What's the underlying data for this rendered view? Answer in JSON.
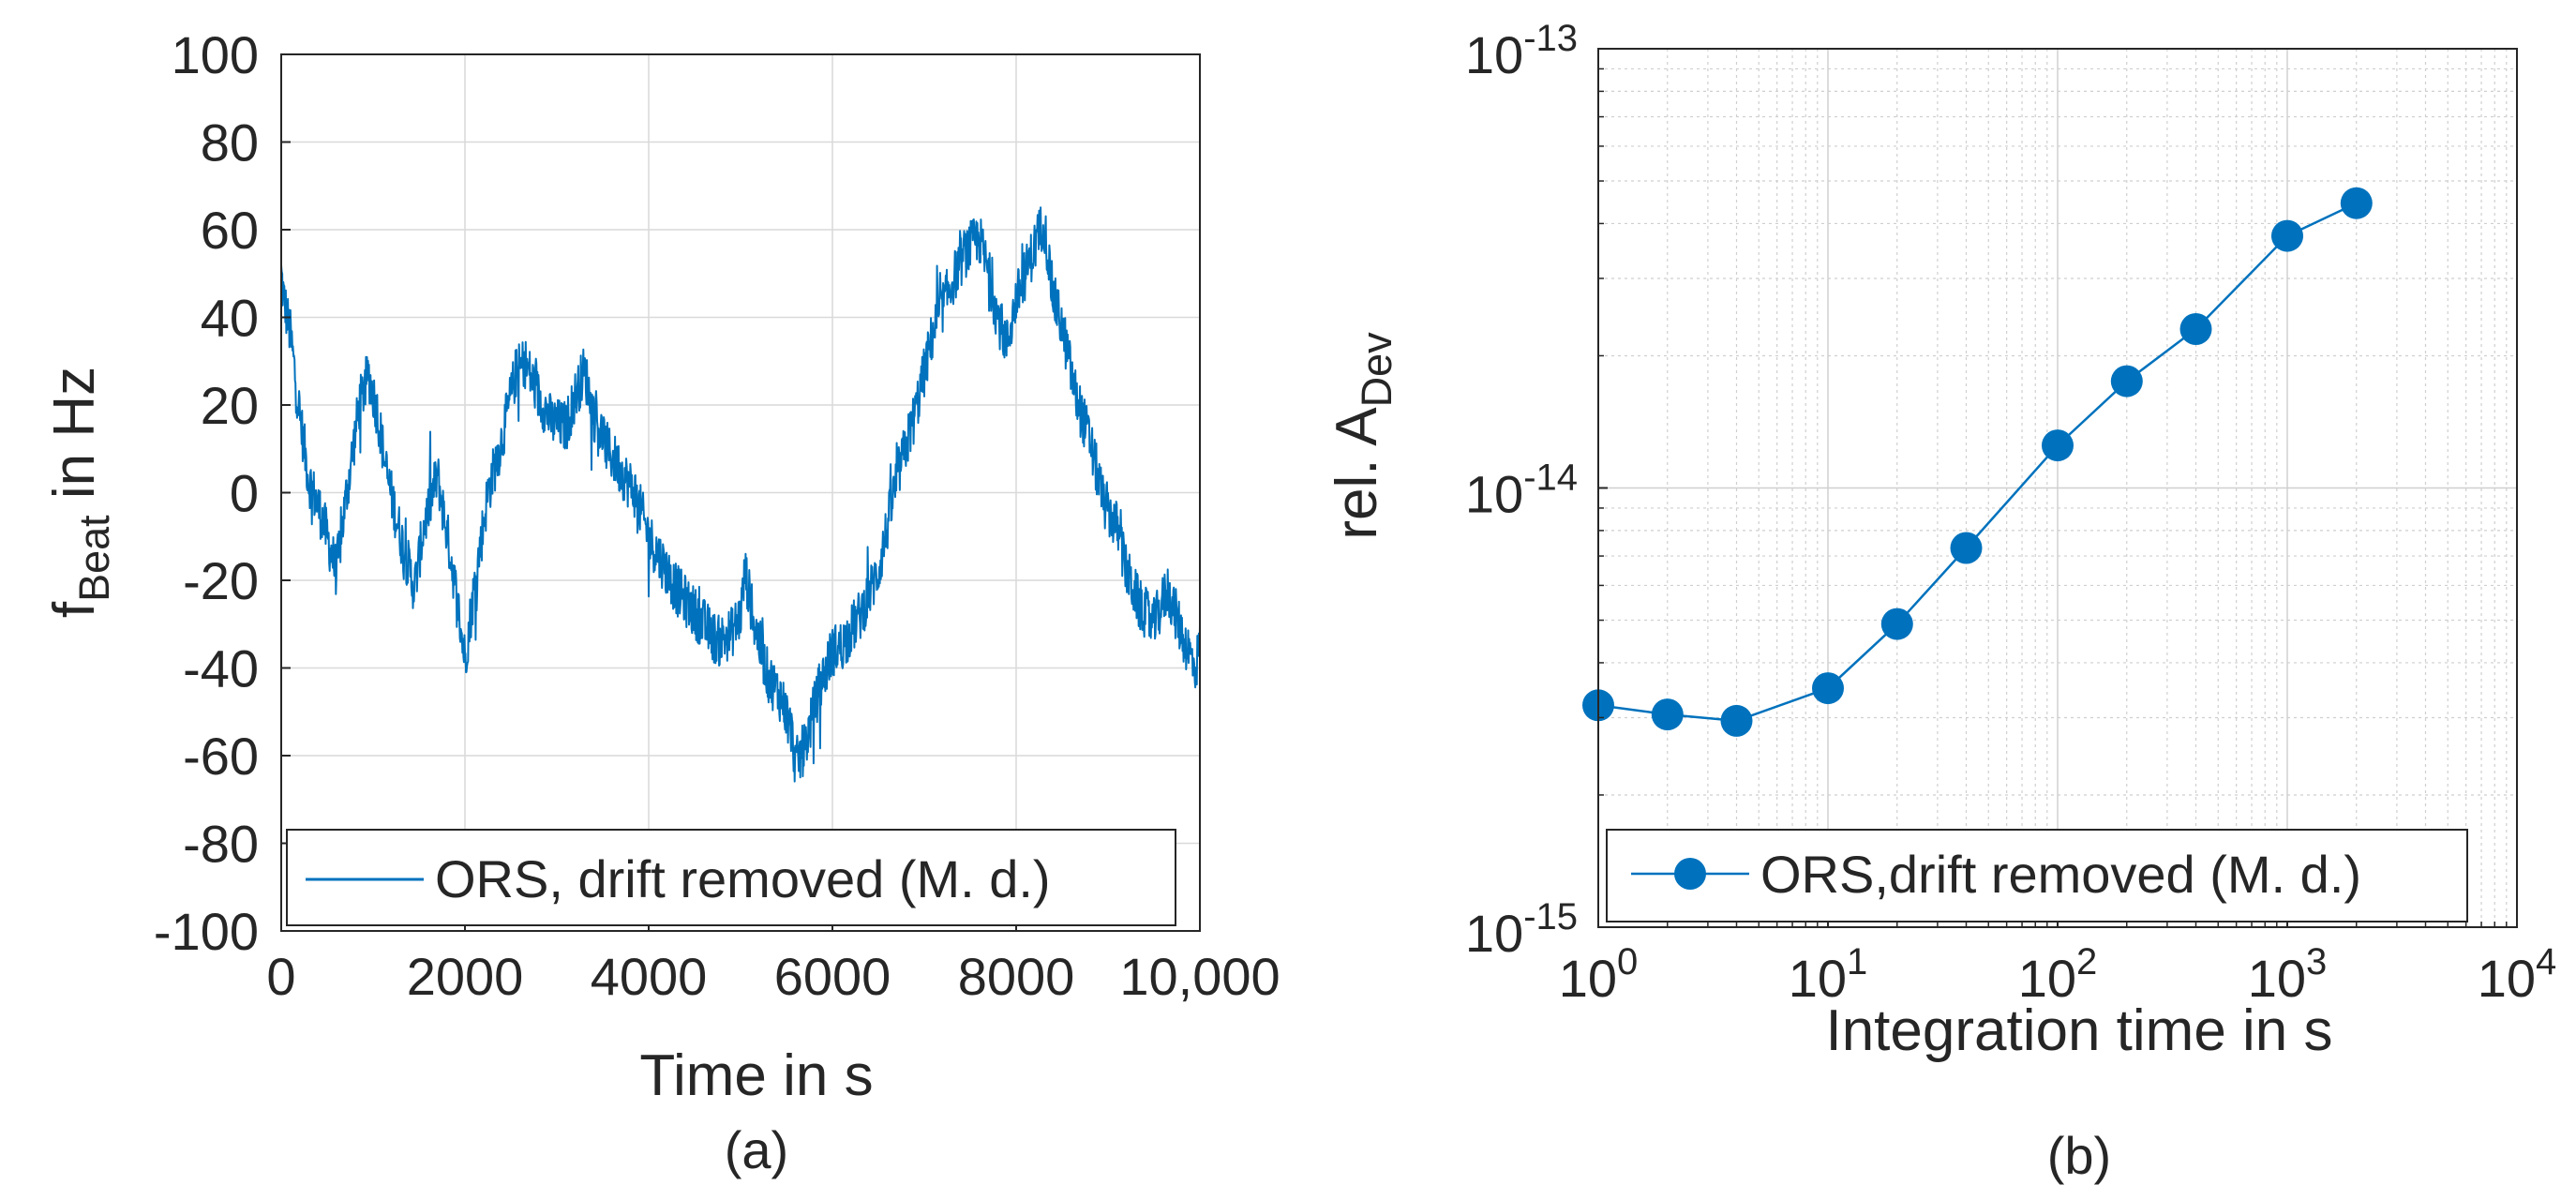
{
  "chart_data": [
    {
      "type": "line",
      "panel_label": "(a)",
      "xlabel": "Time in s",
      "ylabel_main": "f",
      "ylabel_sub": "Beat",
      "ylabel_tail": " in Hz",
      "xlim": [
        0,
        10000
      ],
      "ylim": [
        -100,
        100
      ],
      "grid": true,
      "legend_position": "bottom",
      "x_ticks": [
        0,
        2000,
        4000,
        6000,
        8000,
        10000
      ],
      "x_tick_labels": [
        "0",
        "2000",
        "4000",
        "6000",
        "8000",
        "10,000"
      ],
      "y_ticks": [
        100,
        80,
        60,
        40,
        20,
        0,
        -20,
        -40,
        -60,
        -80,
        -100
      ],
      "y_tick_labels": [
        "100",
        "80",
        "60",
        "40",
        "20",
        "0",
        "-20",
        "-40",
        "-60",
        "-80",
        "-100"
      ],
      "series": [
        {
          "name": "ORS, drift removed (M. d.)",
          "color": "#0072BD",
          "noise_amplitude_hz": 6,
          "x": [
            0,
            30,
            100,
            200,
            300,
            450,
            600,
            700,
            850,
            950,
            1050,
            1150,
            1300,
            1450,
            1550,
            1700,
            1850,
            1950,
            2000,
            2100,
            2250,
            2400,
            2550,
            2650,
            2800,
            2950,
            3100,
            3200,
            3300,
            3400,
            3550,
            3700,
            3850,
            4000,
            4150,
            4300,
            4450,
            4600,
            4750,
            4900,
            5000,
            5050,
            5150,
            5300,
            5450,
            5550,
            5600,
            5700,
            5850,
            6000,
            6100,
            6300,
            6500,
            6700,
            6900,
            7100,
            7300,
            7450,
            7600,
            7700,
            7800,
            7900,
            8000,
            8100,
            8200,
            8300,
            8400,
            8500,
            8650,
            8800,
            8950,
            9100,
            9200,
            9350,
            9500,
            9650,
            9800,
            9950,
            10000
          ],
          "y": [
            50,
            44,
            36,
            18,
            3,
            -6,
            -18,
            -2,
            20,
            27,
            18,
            4,
            -10,
            -22,
            -8,
            4,
            -15,
            -30,
            -38,
            -22,
            0,
            12,
            27,
            30,
            22,
            16,
            15,
            22,
            28,
            18,
            10,
            5,
            0,
            -10,
            -16,
            -22,
            -26,
            -30,
            -34,
            -32,
            -28,
            -18,
            -30,
            -42,
            -47,
            -54,
            -62,
            -58,
            -45,
            -36,
            -35,
            -28,
            -18,
            3,
            18,
            37,
            48,
            55,
            58,
            50,
            40,
            34,
            44,
            50,
            56,
            62,
            45,
            38,
            22,
            12,
            -2,
            -8,
            -18,
            -26,
            -30,
            -22,
            -32,
            -40,
            -35
          ]
        }
      ]
    },
    {
      "type": "line",
      "panel_label": "(b)",
      "xlabel": "Integration time in s",
      "ylabel_main": "rel. A",
      "ylabel_sub": "Dev",
      "x_scale": "log",
      "y_scale": "log",
      "xlim": [
        1,
        10000
      ],
      "ylim": [
        1e-15,
        1e-13
      ],
      "grid": true,
      "minor_grid": true,
      "legend_position": "bottom",
      "x_tick_exponents": [
        0,
        1,
        2,
        3,
        4
      ],
      "x_tick_base": "10",
      "y_tick_exponents": [
        -15,
        -14,
        -13
      ],
      "y_tick_base": "10",
      "series": [
        {
          "name": "ORS,drift removed (M. d.)",
          "color": "#0072BD",
          "marker": "circle",
          "x": [
            1,
            2,
            4,
            10,
            20,
            40,
            100,
            200,
            400,
            1000,
            2000
          ],
          "y": [
            3.2e-15,
            3.05e-15,
            2.95e-15,
            3.5e-15,
            4.9e-15,
            7.3e-15,
            1.25e-14,
            1.75e-14,
            2.3e-14,
            3.75e-14,
            4.45e-14
          ]
        }
      ]
    }
  ]
}
